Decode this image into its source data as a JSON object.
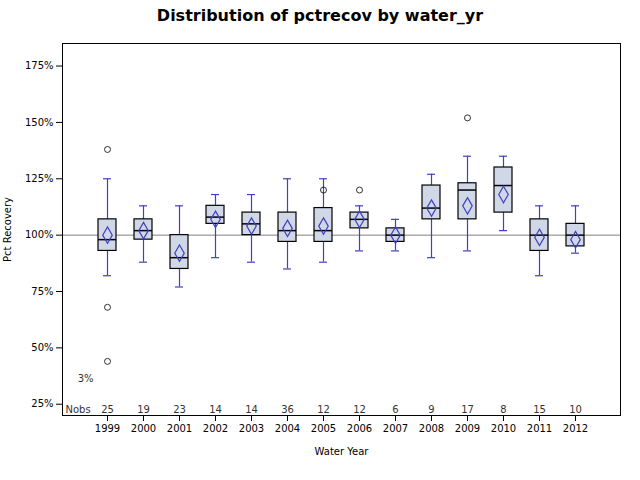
{
  "chart_data": {
    "type": "box",
    "title": "Distribution of pctrecov by water_yr",
    "xlabel": "Water Year",
    "ylabel": "Pct Recovery",
    "categories": [
      "1999",
      "2000",
      "2001",
      "2002",
      "2003",
      "2004",
      "2005",
      "2006",
      "2007",
      "2008",
      "2009",
      "2010",
      "2011",
      "2012"
    ],
    "boxes": [
      {
        "whislo": 0.82,
        "q1": 0.93,
        "med": 0.98,
        "q3": 1.07,
        "whishi": 1.25,
        "mean": 1.0,
        "fliers": [
          1.38,
          0.68,
          0.44
        ]
      },
      {
        "whislo": 0.88,
        "q1": 0.98,
        "med": 1.02,
        "q3": 1.07,
        "whishi": 1.13,
        "mean": 1.02,
        "fliers": []
      },
      {
        "whislo": 0.77,
        "q1": 0.85,
        "med": 0.9,
        "q3": 1.0,
        "whishi": 1.13,
        "mean": 0.92,
        "fliers": []
      },
      {
        "whislo": 0.9,
        "q1": 1.05,
        "med": 1.08,
        "q3": 1.13,
        "whishi": 1.18,
        "mean": 1.07,
        "fliers": []
      },
      {
        "whislo": 0.88,
        "q1": 1.0,
        "med": 1.05,
        "q3": 1.1,
        "whishi": 1.18,
        "mean": 1.04,
        "fliers": []
      },
      {
        "whislo": 0.85,
        "q1": 0.97,
        "med": 1.02,
        "q3": 1.1,
        "whishi": 1.25,
        "mean": 1.03,
        "fliers": []
      },
      {
        "whislo": 0.88,
        "q1": 0.97,
        "med": 1.02,
        "q3": 1.12,
        "whishi": 1.25,
        "mean": 1.04,
        "fliers": [
          1.2
        ]
      },
      {
        "whislo": 0.93,
        "q1": 1.03,
        "med": 1.07,
        "q3": 1.1,
        "whishi": 1.13,
        "mean": 1.07,
        "fliers": [
          1.2
        ]
      },
      {
        "whislo": 0.93,
        "q1": 0.97,
        "med": 1.0,
        "q3": 1.03,
        "whishi": 1.07,
        "mean": 1.0,
        "fliers": []
      },
      {
        "whislo": 0.9,
        "q1": 1.07,
        "med": 1.12,
        "q3": 1.22,
        "whishi": 1.27,
        "mean": 1.12,
        "fliers": []
      },
      {
        "whislo": 0.93,
        "q1": 1.07,
        "med": 1.2,
        "q3": 1.23,
        "whishi": 1.35,
        "mean": 1.13,
        "fliers": [
          1.52
        ]
      },
      {
        "whislo": 1.02,
        "q1": 1.1,
        "med": 1.22,
        "q3": 1.3,
        "whishi": 1.35,
        "mean": 1.18,
        "fliers": []
      },
      {
        "whislo": 0.82,
        "q1": 0.93,
        "med": 1.0,
        "q3": 1.07,
        "whishi": 1.13,
        "mean": 0.99,
        "fliers": []
      },
      {
        "whislo": 0.92,
        "q1": 0.95,
        "med": 1.0,
        "q3": 1.05,
        "whishi": 1.13,
        "mean": 0.98,
        "fliers": []
      }
    ],
    "nobs_label": "Nobs",
    "nobs": [
      25,
      19,
      23,
      14,
      14,
      36,
      12,
      12,
      6,
      9,
      17,
      8,
      15,
      10
    ],
    "annotations": [
      {
        "text": "3%",
        "category": "1999",
        "y": 0.365
      }
    ],
    "reference_line": {
      "y": 1.0,
      "color": "gray"
    },
    "box_color": "#d0d8e8",
    "box_edge_color": "#000000",
    "whisker_color": "#4040c0",
    "median_color": "#000000",
    "mean_color": "#4040c0",
    "outlier_color": "#000000",
    "ylim": [
      0.2,
      1.85
    ],
    "yticks": [
      {
        "value": 0.25,
        "label": "25%"
      },
      {
        "value": 0.5,
        "label": "50%"
      },
      {
        "value": 0.75,
        "label": "75%"
      },
      {
        "value": 1.0,
        "label": "100%"
      },
      {
        "value": 1.25,
        "label": "125%"
      },
      {
        "value": 1.5,
        "label": "150%"
      },
      {
        "value": 1.75,
        "label": "175%"
      }
    ],
    "grid": false
  }
}
